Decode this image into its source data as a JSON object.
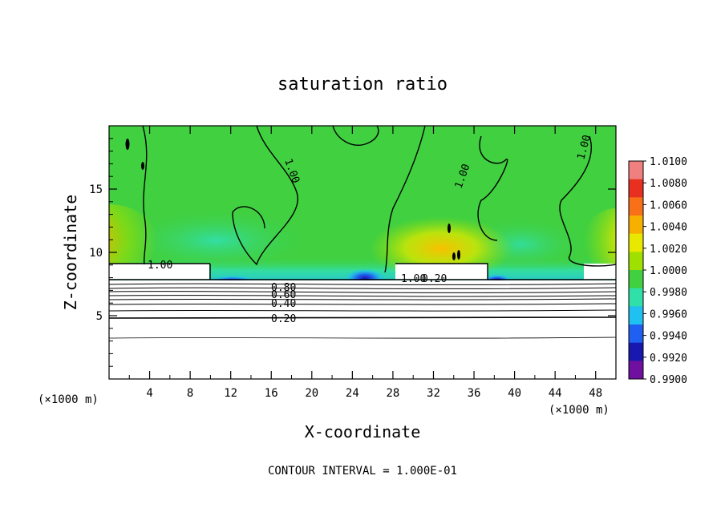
{
  "chart_data": {
    "type": "heatmap",
    "title": "saturation ratio",
    "xlabel": "X-coordinate",
    "ylabel": "Z-coordinate",
    "x_unit_label": "(×1000 m)",
    "y_unit_label": "(×1000 m)",
    "xlim": [
      0,
      50
    ],
    "ylim": [
      0,
      20
    ],
    "x_ticks": [
      "4",
      "8",
      "12",
      "16",
      "20",
      "24",
      "28",
      "32",
      "36",
      "40",
      "44",
      "48"
    ],
    "y_ticks": [
      "5",
      "10",
      "15"
    ],
    "contour_interval_text": "CONTOUR INTERVAL = 1.000E-01",
    "contour_labels": [
      "1.00",
      "1.00",
      "1.00",
      "1.00",
      "1.00",
      "0.80",
      "0.60",
      "0.40",
      "0.20",
      "0.20"
    ],
    "colorbar": {
      "ticks": [
        "1.0100",
        "1.0080",
        "1.0060",
        "1.0040",
        "1.0020",
        "1.0000",
        "0.9980",
        "0.9960",
        "0.9940",
        "0.9920",
        "0.9900"
      ],
      "colors": [
        "#f08080",
        "#e83020",
        "#f87018",
        "#f8b000",
        "#e8e800",
        "#a0e000",
        "#40d040",
        "#30e0a8",
        "#20c0f0",
        "#2060f0",
        "#1818b0",
        "#7010a0"
      ]
    }
  }
}
